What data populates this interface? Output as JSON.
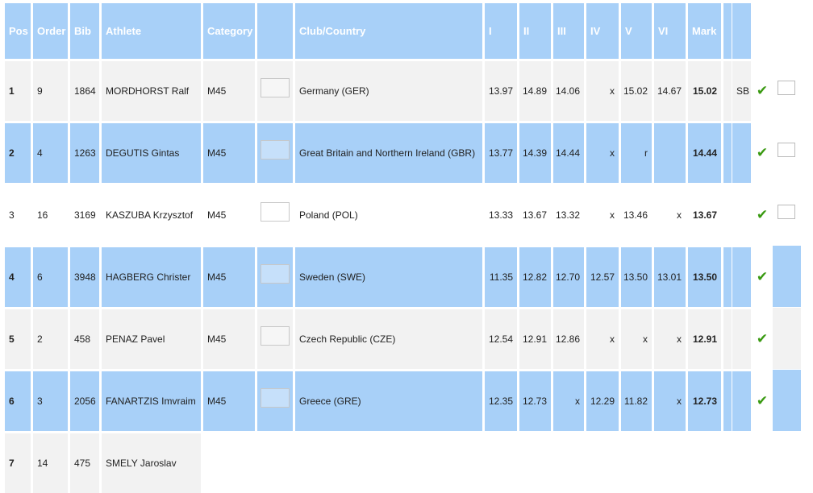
{
  "table": {
    "headers": [
      "Pos",
      "Order",
      "Bib",
      "Athlete",
      "Category",
      "",
      "Club/Country",
      "I",
      "II",
      "III",
      "IV",
      "V",
      "VI",
      "Mark",
      "",
      ""
    ],
    "rows": [
      {
        "pos": "1",
        "order": "9",
        "bib": "1864",
        "athlete": "MORDHORST Ralf",
        "category": "M45",
        "club": "Germany (GER)",
        "attempts": [
          "13.97",
          "14.89",
          "14.06",
          "x",
          "15.02",
          "14.67"
        ],
        "mark": "15.02",
        "note": "SB",
        "style": "gray",
        "pos_bold": true,
        "checked": true,
        "extra": "checkbox"
      },
      {
        "pos": "2",
        "order": "4",
        "bib": "1263",
        "athlete": "DEGUTIS Gintas",
        "category": "M45",
        "club": "Great Britain and Northern Ireland (GBR)",
        "attempts": [
          "13.77",
          "14.39",
          "14.44",
          "x",
          "r",
          ""
        ],
        "mark": "14.44",
        "note": "",
        "style": "blue",
        "pos_bold": true,
        "checked": true,
        "extra": "checkbox"
      },
      {
        "pos": "3",
        "order": "16",
        "bib": "3169",
        "athlete": "KASZUBA Krzysztof",
        "category": "M45",
        "club": "Poland (POL)",
        "attempts": [
          "13.33",
          "13.67",
          "13.32",
          "x",
          "13.46",
          "x"
        ],
        "mark": "13.67",
        "note": "",
        "style": "white",
        "pos_bold": false,
        "checked": true,
        "extra": "checkbox"
      },
      {
        "pos": "4",
        "order": "6",
        "bib": "3948",
        "athlete": "HAGBERG Christer",
        "category": "M45",
        "club": "Sweden (SWE)",
        "attempts": [
          "11.35",
          "12.82",
          "12.70",
          "12.57",
          "13.50",
          "13.01"
        ],
        "mark": "13.50",
        "note": "",
        "style": "blue",
        "pos_bold": true,
        "checked": true,
        "extra": "panel"
      },
      {
        "pos": "5",
        "order": "2",
        "bib": "458",
        "athlete": "PENAZ Pavel",
        "category": "M45",
        "club": "Czech Republic (CZE)",
        "attempts": [
          "12.54",
          "12.91",
          "12.86",
          "x",
          "x",
          "x"
        ],
        "mark": "12.91",
        "note": "",
        "style": "gray",
        "pos_bold": true,
        "checked": true,
        "extra": "panel"
      },
      {
        "pos": "6",
        "order": "3",
        "bib": "2056",
        "athlete": "FANARTZIS Imvraim",
        "category": "M45",
        "club": "Greece (GRE)",
        "attempts": [
          "12.35",
          "12.73",
          "x",
          "12.29",
          "11.82",
          "x"
        ],
        "mark": "12.73",
        "note": "",
        "style": "blue",
        "pos_bold": true,
        "checked": true,
        "extra": "panel"
      },
      {
        "pos": "7",
        "order": "14",
        "bib": "475",
        "athlete": "SMELY Jaroslav",
        "partial": true,
        "style": "gray",
        "pos_bold": true
      }
    ]
  },
  "icons": {
    "check": "check-mark-icon",
    "check_glyph": "✔"
  },
  "colors": {
    "header_bg": "#a8d0f8",
    "row_blue": "#a8d0f8",
    "row_gray": "#f2f2f2",
    "check": "#3a9a12"
  }
}
